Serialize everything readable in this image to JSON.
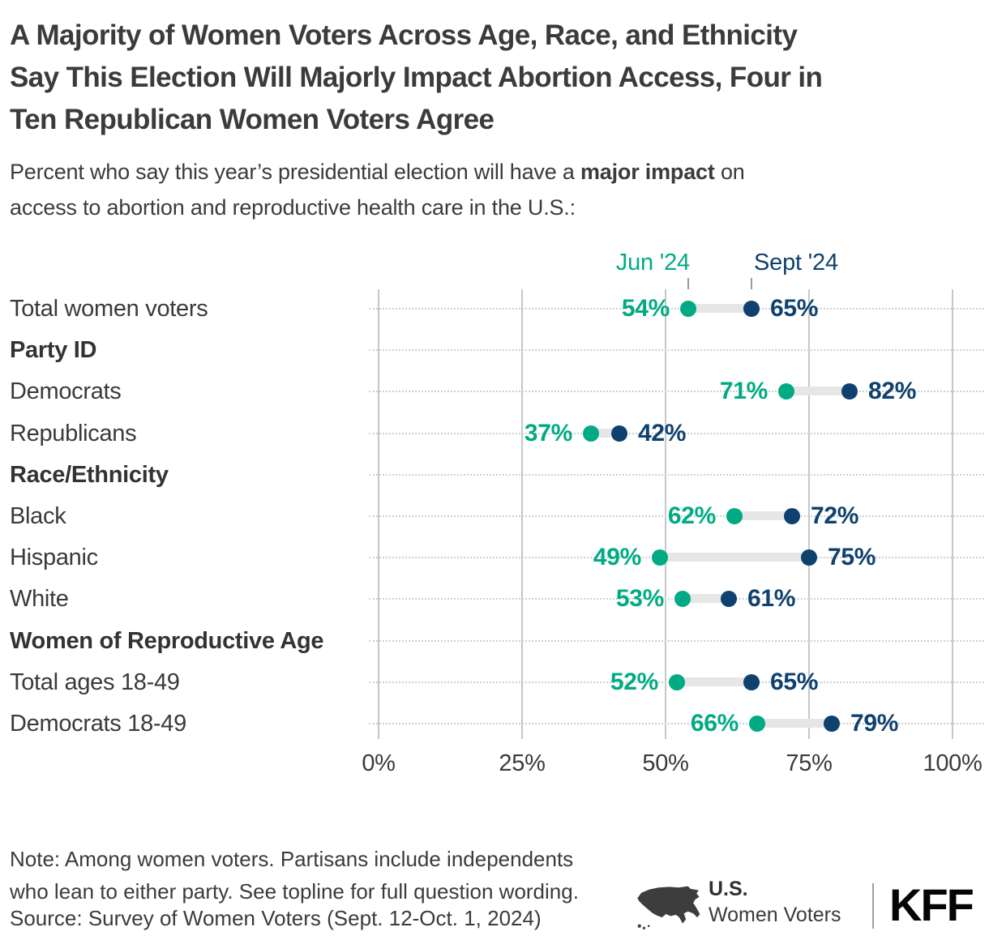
{
  "header": {
    "title_lines": [
      "A Majority of Women Voters Across Age, Race, and Ethnicity",
      "Say This Election Will Majorly Impact Abortion Access, Four in",
      "Ten Republican Women Voters Agree"
    ],
    "subtitle": {
      "pre": "Percent who say this year’s presidential election will have a ",
      "bold": "major impact",
      "post": " on",
      "line2": "access to abortion and reproductive health care in the U.S.:"
    }
  },
  "chart_data": {
    "type": "scatter",
    "variant": "dumbbell",
    "legend": {
      "jun": "Jun '24",
      "sept": "Sept '24",
      "position": "top"
    },
    "series_names": [
      "Jun '24",
      "Sept '24"
    ],
    "colors": {
      "jun": "#00ab84",
      "sept": "#0f416f",
      "connector": "#e6e6e6"
    },
    "x_axis": {
      "ticks": [
        "0%",
        "25%",
        "50%",
        "75%",
        "100%"
      ],
      "xlim": [
        0,
        100
      ],
      "grid": "on"
    },
    "rows": [
      {
        "label": "Total women voters",
        "kind": "data",
        "jun": 54,
        "sept": 65,
        "jun_label": "54%",
        "sept_label": "65%"
      },
      {
        "label": "Party ID",
        "kind": "header"
      },
      {
        "label": "Democrats",
        "kind": "data",
        "jun": 71,
        "sept": 82,
        "jun_label": "71%",
        "sept_label": "82%"
      },
      {
        "label": "Republicans",
        "kind": "data",
        "jun": 37,
        "sept": 42,
        "jun_label": "37%",
        "sept_label": "42%"
      },
      {
        "label": "Race/Ethnicity",
        "kind": "header"
      },
      {
        "label": "Black",
        "kind": "data",
        "jun": 62,
        "sept": 72,
        "jun_label": "62%",
        "sept_label": "72%"
      },
      {
        "label": "Hispanic",
        "kind": "data",
        "jun": 49,
        "sept": 75,
        "jun_label": "49%",
        "sept_label": "75%"
      },
      {
        "label": "White",
        "kind": "data",
        "jun": 53,
        "sept": 61,
        "jun_label": "53%",
        "sept_label": "61%"
      },
      {
        "label": "Women of Reproductive Age",
        "kind": "header"
      },
      {
        "label": "Total ages 18-49",
        "kind": "data",
        "jun": 52,
        "sept": 65,
        "jun_label": "52%",
        "sept_label": "65%"
      },
      {
        "label": "Democrats 18-49",
        "kind": "data",
        "jun": 66,
        "sept": 79,
        "jun_label": "66%",
        "sept_label": "79%"
      }
    ]
  },
  "footer": {
    "note_lines": [
      "Note: Among women voters. Partisans include independents",
      "who lean to either party. See topline for full question wording."
    ],
    "source": "Source: Survey of Women Voters (Sept. 12-Oct. 1, 2024)",
    "brand_top": "U.S.",
    "brand_bottom": "Women Voters",
    "logo": "KFF",
    "map_icon": "us-map-icon"
  }
}
